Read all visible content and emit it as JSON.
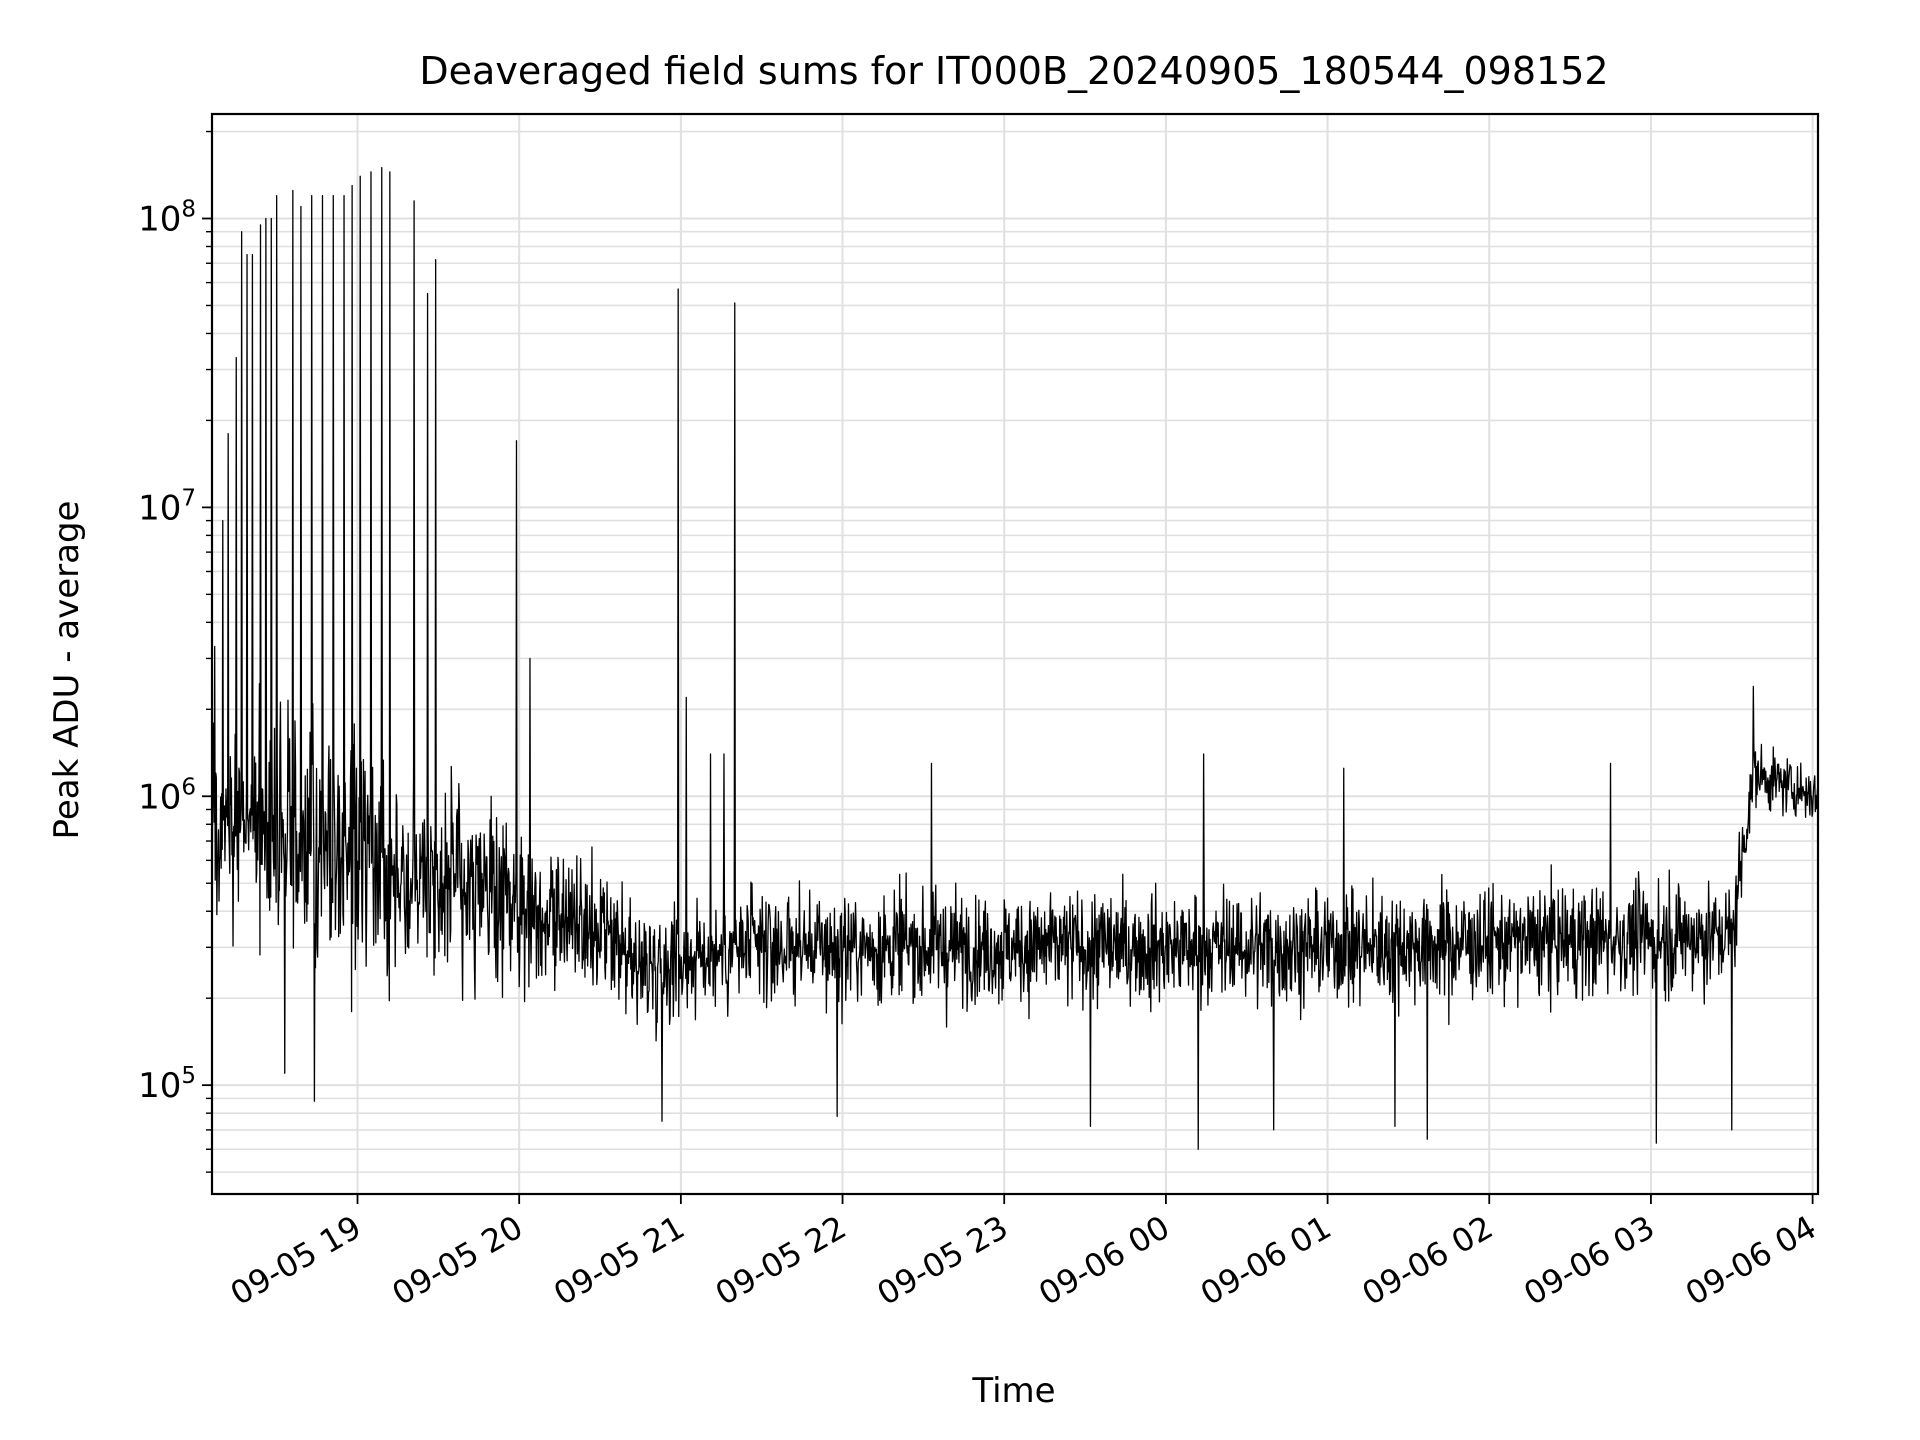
{
  "chart_data": {
    "type": "line",
    "title": "Deaveraged field sums for IT000B_20240905_180544_098152",
    "xlabel": "Time",
    "ylabel": "Peak ADU - average",
    "yscale": "log",
    "ylim": [
      42000,
      230000000
    ],
    "xlim": [
      "2024-09-05 18:06",
      "2024-09-06 04:02"
    ],
    "grid": true,
    "line_color": "#000000",
    "grid_color": "#e0e0e0",
    "x_ticks": [
      {
        "t": "2024-09-05 19:00",
        "label": "09-05 19"
      },
      {
        "t": "2024-09-05 20:00",
        "label": "09-05 20"
      },
      {
        "t": "2024-09-05 21:00",
        "label": "09-05 21"
      },
      {
        "t": "2024-09-05 22:00",
        "label": "09-05 22"
      },
      {
        "t": "2024-09-05 23:00",
        "label": "09-05 23"
      },
      {
        "t": "2024-09-06 00:00",
        "label": "09-06 00"
      },
      {
        "t": "2024-09-06 01:00",
        "label": "09-06 01"
      },
      {
        "t": "2024-09-06 02:00",
        "label": "09-06 02"
      },
      {
        "t": "2024-09-06 03:00",
        "label": "09-06 03"
      },
      {
        "t": "2024-09-06 04:00",
        "label": "09-06 04"
      }
    ],
    "y_ticks": [
      {
        "value": 100000,
        "base": "10",
        "exp": "5"
      },
      {
        "value": 1000000,
        "base": "10",
        "exp": "6"
      },
      {
        "value": 10000000,
        "base": "10",
        "exp": "7"
      },
      {
        "value": 100000000,
        "base": "10",
        "exp": "8"
      }
    ],
    "series": [
      {
        "name": "",
        "envelope": [
          {
            "t": "2024-09-05 18:06",
            "base": 900000,
            "spread": 0.45
          },
          {
            "t": "2024-09-05 18:45",
            "base": 700000,
            "spread": 0.5
          },
          {
            "t": "2024-09-05 19:30",
            "base": 520000,
            "spread": 0.4
          },
          {
            "t": "2024-09-05 20:15",
            "base": 380000,
            "spread": 0.3
          },
          {
            "t": "2024-09-05 20:45",
            "base": 260000,
            "spread": 0.25
          },
          {
            "t": "2024-09-05 21:30",
            "base": 300000,
            "spread": 0.24
          },
          {
            "t": "2024-09-06 01:00",
            "base": 300000,
            "spread": 0.24
          },
          {
            "t": "2024-09-06 03:30",
            "base": 330000,
            "spread": 0.24
          },
          {
            "t": "2024-09-06 03:38",
            "base": 1200000,
            "spread": 0.13
          },
          {
            "t": "2024-09-06 04:02",
            "base": 1000000,
            "spread": 0.12
          }
        ],
        "spikes": [
          {
            "t": "2024-09-05 18:07",
            "value": 3300000
          },
          {
            "t": "2024-09-05 18:10",
            "value": 9000000
          },
          {
            "t": "2024-09-05 18:12",
            "value": 18000000
          },
          {
            "t": "2024-09-05 18:15",
            "value": 33000000
          },
          {
            "t": "2024-09-05 18:17",
            "value": 90000000
          },
          {
            "t": "2024-09-05 18:19",
            "value": 75000000
          },
          {
            "t": "2024-09-05 18:21",
            "value": 75000000
          },
          {
            "t": "2024-09-05 18:24",
            "value": 95000000
          },
          {
            "t": "2024-09-05 18:26",
            "value": 100000000
          },
          {
            "t": "2024-09-05 18:28",
            "value": 100000000
          },
          {
            "t": "2024-09-05 18:30",
            "value": 120000000
          },
          {
            "t": "2024-09-05 18:33",
            "value": 125000000
          },
          {
            "t": "2024-09-05 18:36",
            "value": 125000000
          },
          {
            "t": "2024-09-05 18:39",
            "value": 110000000
          },
          {
            "t": "2024-09-05 18:43",
            "value": 120000000
          },
          {
            "t": "2024-09-05 18:47",
            "value": 120000000
          },
          {
            "t": "2024-09-05 18:51",
            "value": 120000000
          },
          {
            "t": "2024-09-05 18:55",
            "value": 120000000
          },
          {
            "t": "2024-09-05 18:58",
            "value": 130000000
          },
          {
            "t": "2024-09-05 19:01",
            "value": 140000000
          },
          {
            "t": "2024-09-05 19:05",
            "value": 145000000
          },
          {
            "t": "2024-09-05 19:09",
            "value": 150000000
          },
          {
            "t": "2024-09-05 19:12",
            "value": 145000000
          },
          {
            "t": "2024-09-05 19:21",
            "value": 115000000
          },
          {
            "t": "2024-09-05 19:26",
            "value": 55000000
          },
          {
            "t": "2024-09-05 19:29",
            "value": 72000000
          },
          {
            "t": "2024-09-05 19:59",
            "value": 17000000
          },
          {
            "t": "2024-09-05 20:04",
            "value": 3000000
          },
          {
            "t": "2024-09-05 20:59",
            "value": 57000000
          },
          {
            "t": "2024-09-05 21:02",
            "value": 2200000
          },
          {
            "t": "2024-09-05 21:11",
            "value": 1400000
          },
          {
            "t": "2024-09-05 21:16",
            "value": 1400000
          },
          {
            "t": "2024-09-05 21:20",
            "value": 51000000
          },
          {
            "t": "2024-09-05 22:33",
            "value": 1300000
          },
          {
            "t": "2024-09-06 00:14",
            "value": 1400000
          },
          {
            "t": "2024-09-06 01:06",
            "value": 1250000
          },
          {
            "t": "2024-09-06 02:45",
            "value": 1300000
          },
          {
            "t": "2024-09-06 03:38",
            "value": 2400000
          }
        ],
        "dips": [
          {
            "t": "2024-09-05 18:33",
            "value": 110000
          },
          {
            "t": "2024-09-05 18:44",
            "value": 88000
          },
          {
            "t": "2024-09-05 20:53",
            "value": 75000
          },
          {
            "t": "2024-09-05 21:58",
            "value": 78000
          },
          {
            "t": "2024-09-05 23:32",
            "value": 72000
          },
          {
            "t": "2024-09-06 00:12",
            "value": 60000
          },
          {
            "t": "2024-09-06 00:40",
            "value": 70000
          },
          {
            "t": "2024-09-06 01:25",
            "value": 72000
          },
          {
            "t": "2024-09-06 01:37",
            "value": 65000
          },
          {
            "t": "2024-09-06 03:02",
            "value": 63000
          },
          {
            "t": "2024-09-06 03:30",
            "value": 70000
          }
        ]
      }
    ]
  }
}
